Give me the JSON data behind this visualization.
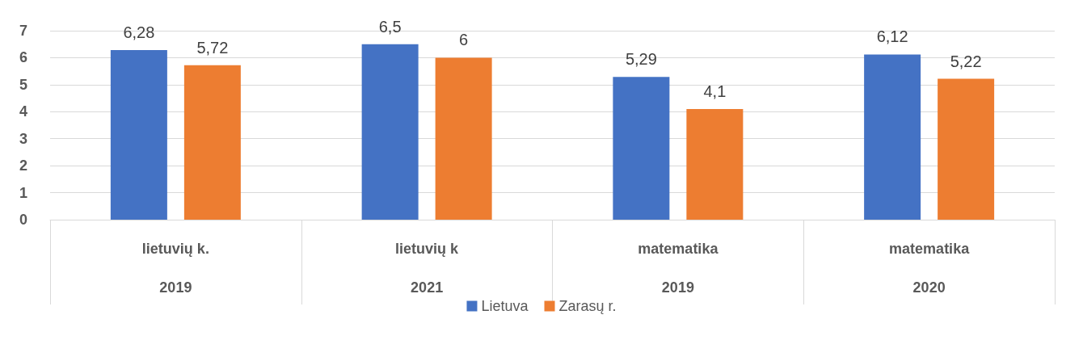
{
  "chart_data": {
    "type": "bar",
    "categories": [
      "lietuvių k.\n2019",
      "lietuvių k\n2021",
      "matematika\n2019",
      "matematika\n2020"
    ],
    "series": [
      {
        "name": "Lietuva",
        "color": "#4472c4",
        "values": [
          6.28,
          6.5,
          5.29,
          6.12
        ],
        "value_labels": [
          "6,28",
          "6,5",
          "5,29",
          "6,12"
        ]
      },
      {
        "name": "Zarasų r.",
        "color": "#ed7d31",
        "values": [
          5.72,
          6,
          4.1,
          5.22
        ],
        "value_labels": [
          "5,72",
          "6",
          "4,1",
          "5,22"
        ]
      }
    ],
    "ylim": [
      0,
      7
    ],
    "yticks": [
      0,
      1,
      2,
      3,
      4,
      5,
      6,
      7
    ],
    "grid": "y",
    "legend": "bottom"
  }
}
